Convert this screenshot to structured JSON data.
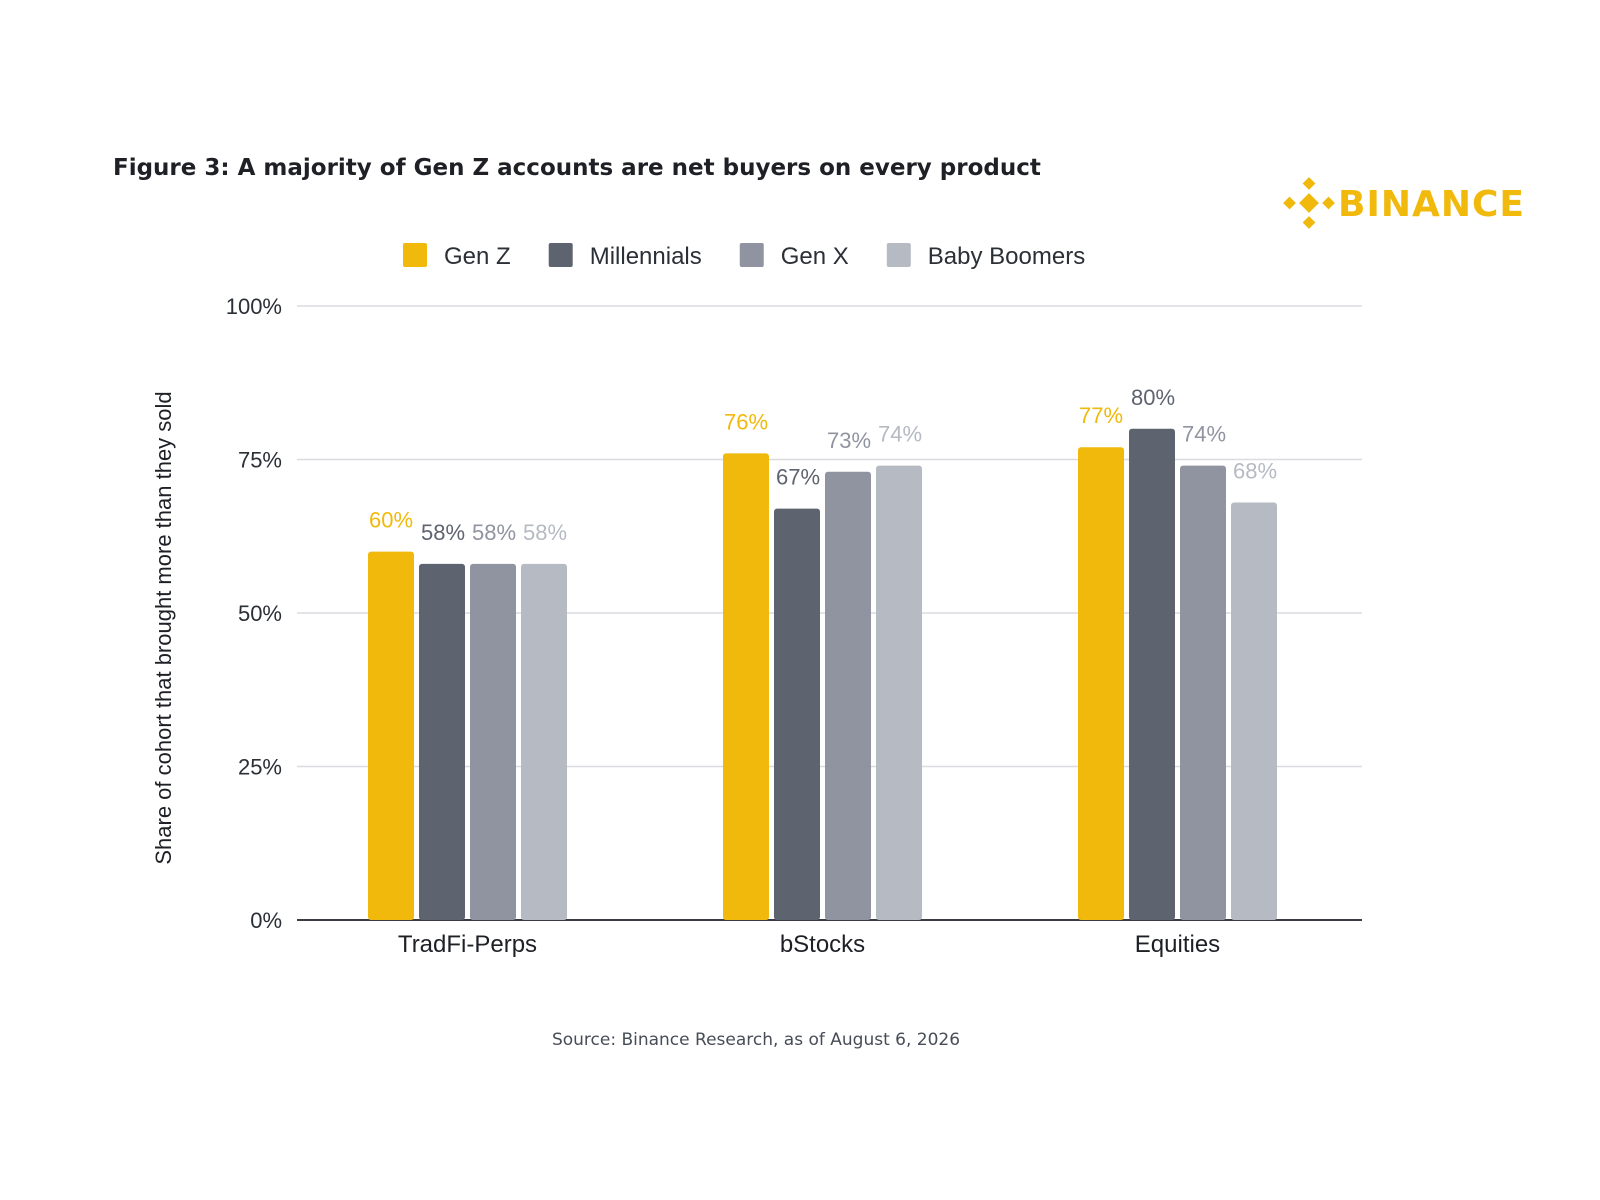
{
  "title": "Figure 3: A majority of Gen Z accounts are net buyers on every product",
  "brand": {
    "name": "BINANCE",
    "color": "#f0b90b"
  },
  "source": "Source: Binance Research, as of August 6, 2026",
  "chart_data": {
    "type": "bar",
    "categories": [
      "TradFi-Perps",
      "bStocks",
      "Equities"
    ],
    "series": [
      {
        "name": "Gen Z",
        "values": [
          60,
          76,
          77
        ],
        "labels": [
          "60%",
          "76%",
          "77%"
        ],
        "color": "#f0b90b"
      },
      {
        "name": "Millennials",
        "values": [
          58,
          67,
          80
        ],
        "labels": [
          "58%",
          "67%",
          "80%"
        ],
        "color": "#5e6370"
      },
      {
        "name": "Gen X",
        "values": [
          58,
          73,
          74
        ],
        "labels": [
          "58%",
          "73%",
          "74%"
        ],
        "color": "#9094a0"
      },
      {
        "name": "Baby Boomers",
        "values": [
          58,
          74,
          68
        ],
        "labels": [
          "58%",
          "74%",
          "68%"
        ],
        "color": "#b5bac3"
      }
    ],
    "ylabel": "Share of cohort that brought more than they sold",
    "xlabel": "",
    "ylim": [
      0,
      100
    ],
    "yticks": [
      "0%",
      "25%",
      "50%",
      "75%",
      "100%"
    ],
    "grid": true,
    "legend": "top"
  }
}
